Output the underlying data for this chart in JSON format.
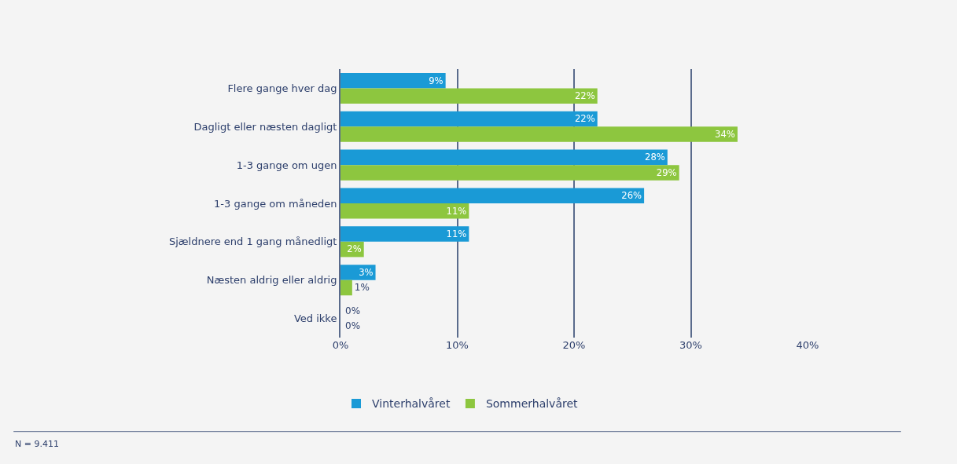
{
  "chart_data": {
    "type": "bar",
    "orientation": "horizontal",
    "categories": [
      "Flere gange hver dag",
      "Dagligt eller næsten dagligt",
      "1-3 gange om ugen",
      "1-3 gange om måneden",
      "Sjældnere end 1 gang månedligt",
      "Næsten aldrig eller aldrig",
      "Ved ikke"
    ],
    "series": [
      {
        "name": "Vinterhalvåret",
        "color": "#1a9ad6",
        "values": [
          9,
          22,
          28,
          26,
          11,
          3,
          0
        ],
        "value_labels": [
          "9%",
          "22%",
          "28%",
          "26%",
          "11%",
          "3%",
          "0%"
        ]
      },
      {
        "name": "Sommerhalvåret",
        "color": "#8dc63f",
        "values": [
          22,
          34,
          29,
          11,
          2,
          1,
          0
        ],
        "value_labels": [
          "22%",
          "34%",
          "29%",
          "11%",
          "2%",
          "1%",
          "0%"
        ]
      }
    ],
    "xlim": [
      0,
      40
    ],
    "xticks": [
      {
        "value": 0,
        "label": "0%"
      },
      {
        "value": 10,
        "label": "10%"
      },
      {
        "value": 20,
        "label": "20%"
      },
      {
        "value": 30,
        "label": "30%"
      },
      {
        "value": 40,
        "label": "40%"
      }
    ],
    "grid": "x",
    "legend": "bottom",
    "annotations": [
      "N = 9.411"
    ]
  }
}
